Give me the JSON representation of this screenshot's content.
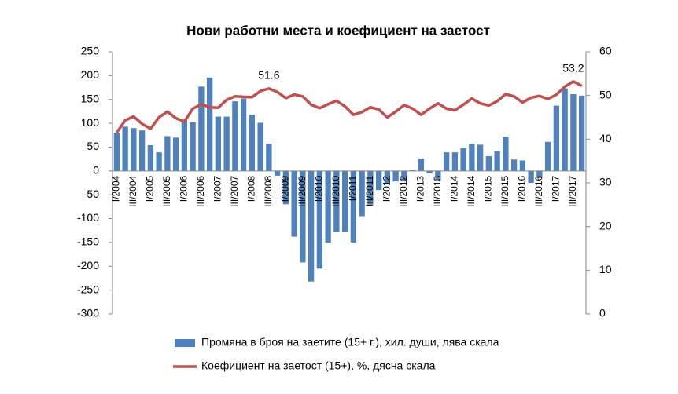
{
  "chart_data": {
    "type": "bar-line",
    "title": "Нови работни места и коефициент на заетост",
    "categories": [
      "I/2004",
      null,
      "III/2004",
      null,
      "I/2005",
      null,
      "III/2005",
      null,
      "I/2006",
      null,
      "III/2006",
      null,
      "I/2007",
      null,
      "III/2007",
      null,
      "I/2008",
      null,
      "III/2008",
      null,
      "I/2009",
      null,
      "III/2009",
      null,
      "I/2010",
      null,
      "III/2010",
      null,
      "I/2011",
      null,
      "III/2011",
      null,
      "I/2012",
      null,
      "III/2012",
      null,
      "I/2013",
      null,
      "III/2013",
      null,
      "I/2014",
      null,
      "III/2014",
      null,
      "I/2015",
      null,
      "III/2015",
      null,
      "I/2016",
      null,
      "III/2016",
      null,
      "I/2017",
      null,
      "III/2017",
      null
    ],
    "series": [
      {
        "name": "Промяна в броя на заетите (15+ г.), хил. души, лява скала",
        "type": "bar",
        "color": "#4f81bd",
        "values": [
          80,
          93,
          90,
          85,
          54,
          39,
          73,
          70,
          108,
          102,
          177,
          196,
          114,
          114,
          146,
          152,
          118,
          101,
          57,
          -10,
          -70,
          -138,
          -192,
          -232,
          -205,
          -150,
          -128,
          -128,
          -150,
          -95,
          -70,
          -40,
          -28,
          -22,
          -22,
          2,
          26,
          -5,
          -20,
          39,
          39,
          48,
          57,
          55,
          31,
          42,
          72,
          24,
          22,
          -25,
          -15,
          61,
          137,
          173,
          161,
          158
        ]
      },
      {
        "name": "Коефициент на заетост (15+), %, дясна скала",
        "type": "line",
        "axis": "y2",
        "color": "#c0504d",
        "values": [
          41.5,
          44.3,
          45.2,
          43.5,
          42.4,
          45.0,
          46.3,
          44.8,
          44.0,
          47.0,
          48.0,
          47.3,
          47.2,
          49.0,
          49.8,
          49.7,
          49.6,
          51.0,
          51.6,
          50.8,
          49.4,
          50.2,
          49.8,
          47.9,
          47.1,
          48.0,
          48.8,
          47.5,
          45.6,
          46.2,
          47.3,
          46.8,
          45.0,
          46.3,
          47.8,
          47.0,
          45.6,
          47.0,
          48.2,
          47.0,
          46.6,
          47.9,
          49.3,
          48.2,
          47.7,
          48.7,
          50.3,
          49.8,
          48.4,
          49.5,
          49.9,
          49.2,
          50.2,
          52.0,
          53.2,
          52.2
        ],
        "value_labels": [
          null,
          null,
          null,
          null,
          null,
          null,
          null,
          null,
          null,
          null,
          null,
          null,
          null,
          null,
          null,
          null,
          null,
          null,
          "51.6",
          null,
          null,
          null,
          null,
          null,
          null,
          null,
          null,
          null,
          null,
          null,
          null,
          null,
          null,
          null,
          null,
          null,
          null,
          null,
          null,
          null,
          null,
          null,
          null,
          null,
          null,
          null,
          null,
          null,
          null,
          null,
          null,
          null,
          null,
          null,
          "53.2",
          null
        ]
      }
    ],
    "ylim": [
      -300,
      250
    ],
    "yticks": [
      -300,
      -250,
      -200,
      -150,
      -100,
      -50,
      0,
      50,
      100,
      150,
      200,
      250
    ],
    "y2lim": [
      0,
      60
    ],
    "y2ticks": [
      0,
      10,
      20,
      30,
      40,
      50,
      60
    ],
    "grid": false
  }
}
